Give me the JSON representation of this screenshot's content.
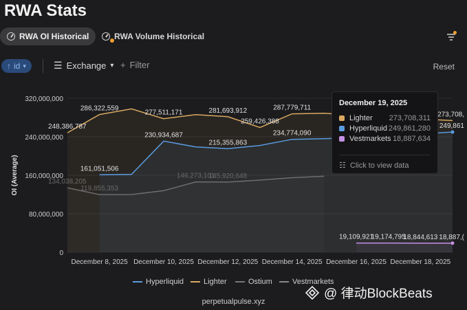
{
  "page": {
    "title": "RWA Stats"
  },
  "tabs": [
    {
      "label": "RWA OI Historical",
      "icon": "clock-icon",
      "active": true
    },
    {
      "label": "RWA Volume Historical",
      "icon": "clock-icon",
      "active": false
    }
  ],
  "toolbar": {
    "sort_label": "id",
    "group_label": "Exchange",
    "filter_label": "Filter",
    "reset_label": "Reset"
  },
  "tooltip": {
    "date": "December 19, 2025",
    "rows": [
      {
        "name": "Lighter",
        "value": "273,708,311",
        "color": "#d9a860"
      },
      {
        "name": "Hyperliquid",
        "value": "249,861,280",
        "color": "#5b9be0"
      },
      {
        "name": "Vestmarkets",
        "value": "18,887,634",
        "color": "#c490e4"
      }
    ],
    "link_label": "Click to view data"
  },
  "legend": [
    {
      "name": "Hyperliquid",
      "color": "#5b9be0"
    },
    {
      "name": "Lighter",
      "color": "#d9a860"
    },
    {
      "name": "Ostium",
      "color": "#777777"
    },
    {
      "name": "Vestmarkets",
      "color": "#888888"
    }
  ],
  "source_label": "perpetualpulse.xyz",
  "watermark": "@ 律动BlockBeats",
  "chart_data": {
    "type": "area",
    "ylabel": "OI (Average)",
    "ylim": [
      0,
      320000000
    ],
    "yticks": [
      "320,000,000",
      "240,000,000",
      "160,000,000",
      "80,000,000",
      "0"
    ],
    "xticks": [
      "December 8, 2025",
      "December 10, 2025",
      "December 12, 2025",
      "December 14, 2025",
      "December 16, 2025",
      "December 18, 2025"
    ],
    "x": [
      "2025-12-07",
      "2025-12-08",
      "2025-12-09",
      "2025-12-10",
      "2025-12-11",
      "2025-12-12",
      "2025-12-13",
      "2025-12-14",
      "2025-12-15",
      "2025-12-16",
      "2025-12-17",
      "2025-12-18",
      "2025-12-19"
    ],
    "series": [
      {
        "name": "Lighter",
        "color": "#d9a860",
        "values": [
          248386787,
          286322559,
          298000000,
          277511171,
          286000000,
          281693912,
          259426388,
          287779711,
          289000000,
          285000000,
          280000000,
          277000000,
          273708311
        ]
      },
      {
        "name": "Hyperliquid",
        "color": "#5b9be0",
        "values": [
          null,
          161051506,
          162000000,
          230934687,
          219000000,
          215355863,
          222000000,
          234774090,
          236000000,
          238000000,
          241000000,
          246000000,
          249861280
        ]
      },
      {
        "name": "Ostium",
        "color": "#6e6e6e",
        "values": [
          134038205,
          119855353,
          120000000,
          128000000,
          146273101,
          145920648,
          150000000,
          155000000,
          158000000,
          null,
          null,
          null,
          null
        ]
      },
      {
        "name": "Vestmarkets",
        "color": "#c490e4",
        "values": [
          null,
          null,
          null,
          null,
          null,
          null,
          null,
          null,
          null,
          19109921,
          19174795,
          18844613,
          18887634
        ]
      }
    ],
    "labels": [
      {
        "series": "Lighter",
        "i": 0,
        "text": "248,386,787"
      },
      {
        "series": "Lighter",
        "i": 1,
        "text": "286,322,559"
      },
      {
        "series": "Lighter",
        "i": 3,
        "text": "277,511,171"
      },
      {
        "series": "Lighter",
        "i": 5,
        "text": "281,693,912"
      },
      {
        "series": "Lighter",
        "i": 6,
        "text": "259,426,388"
      },
      {
        "series": "Lighter",
        "i": 7,
        "text": "287,779,711"
      },
      {
        "series": "Lighter",
        "i": 12,
        "text": "273,708,"
      },
      {
        "series": "Hyperliquid",
        "i": 1,
        "text": "161,051,506"
      },
      {
        "series": "Hyperliquid",
        "i": 3,
        "text": "230,934,687"
      },
      {
        "series": "Hyperliquid",
        "i": 5,
        "text": "215,355,863"
      },
      {
        "series": "Hyperliquid",
        "i": 7,
        "text": "234,774,090"
      },
      {
        "series": "Hyperliquid",
        "i": 12,
        "text": "249,861"
      },
      {
        "series": "Ostium",
        "i": 0,
        "text": "134,038,205"
      },
      {
        "series": "Ostium",
        "i": 1,
        "text": "119,855,353"
      },
      {
        "series": "Ostium",
        "i": 4,
        "text": "146,273,101"
      },
      {
        "series": "Ostium",
        "i": 5,
        "text": "145,920,648"
      },
      {
        "series": "Vestmarkets",
        "i": 9,
        "text": "19,109,921"
      },
      {
        "series": "Vestmarkets",
        "i": 10,
        "text": "19,174,795"
      },
      {
        "series": "Vestmarkets",
        "i": 11,
        "text": "18,844,613"
      },
      {
        "series": "Vestmarkets",
        "i": 12,
        "text": "18,887,("
      }
    ]
  }
}
